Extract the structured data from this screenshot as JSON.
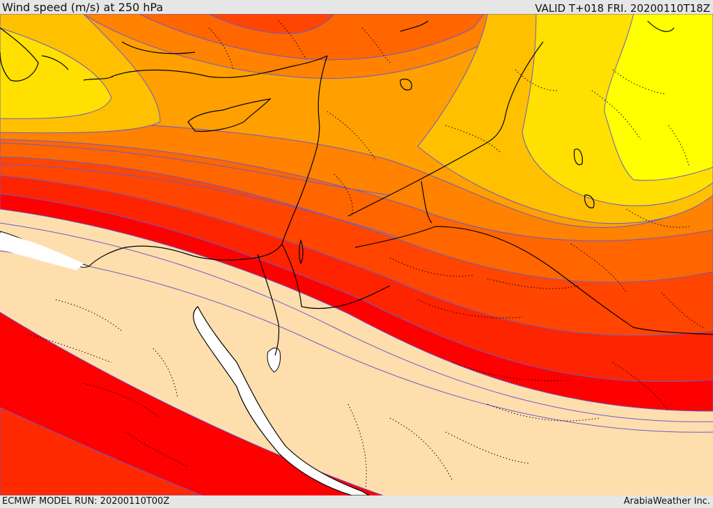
{
  "header": {
    "title": "Wind speed (m/s) at 250 hPa",
    "valid": "VALID T+018 FRI. 20200110T18Z"
  },
  "footer": {
    "model_run": "ECMWF MODEL RUN: 20200110T00Z",
    "credit": "ArabiaWeather Inc."
  },
  "map": {
    "variable": "wind speed",
    "level": "250 hPa",
    "palette": [
      "#ffdead",
      "#ff0000",
      "#ff2400",
      "#ff4500",
      "#ff6600",
      "#ff8200",
      "#ffa000",
      "#ffc000",
      "#ffe000",
      "#ffff00"
    ],
    "contour_color": "#6a5acd",
    "sea_color": "#ffffff",
    "coast_color": "#000000"
  }
}
